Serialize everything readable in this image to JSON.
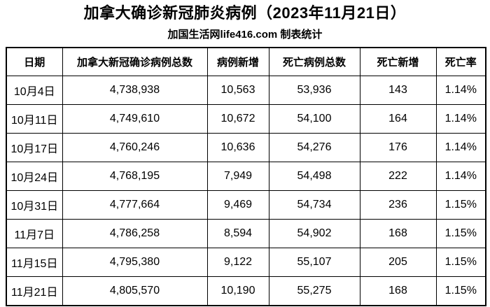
{
  "chart_data": {
    "type": "table",
    "title": "加拿大确诊新冠肺炎病例（2023年11月21日）",
    "subtitle": "加国生活网life416.com 制表统计",
    "columns": [
      "日期",
      "加拿大新冠确诊病例总数",
      "病例新增",
      "死亡病例总数",
      "死亡新增",
      "死亡率"
    ],
    "rows": [
      [
        "10月4日",
        "4,738,938",
        "10,563",
        "53,936",
        "143",
        "1.14%"
      ],
      [
        "10月11日",
        "4,749,610",
        "10,672",
        "54,100",
        "164",
        "1.14%"
      ],
      [
        "10月17日",
        "4,760,246",
        "10,636",
        "54,276",
        "176",
        "1.14%"
      ],
      [
        "10月24日",
        "4,768,195",
        "7,949",
        "54,498",
        "222",
        "1.14%"
      ],
      [
        "10月31日",
        "4,777,664",
        "9,469",
        "54,734",
        "236",
        "1.15%"
      ],
      [
        "11月7日",
        "4,786,258",
        "8,594",
        "54,902",
        "168",
        "1.15%"
      ],
      [
        "11月15日",
        "4,795,380",
        "9,122",
        "55,107",
        "205",
        "1.15%"
      ],
      [
        "11月21日",
        "4,805,570",
        "10,190",
        "55,275",
        "168",
        "1.15%"
      ]
    ],
    "colors": {
      "text": "#000000",
      "background": "#ffffff",
      "border": "#000000"
    }
  }
}
